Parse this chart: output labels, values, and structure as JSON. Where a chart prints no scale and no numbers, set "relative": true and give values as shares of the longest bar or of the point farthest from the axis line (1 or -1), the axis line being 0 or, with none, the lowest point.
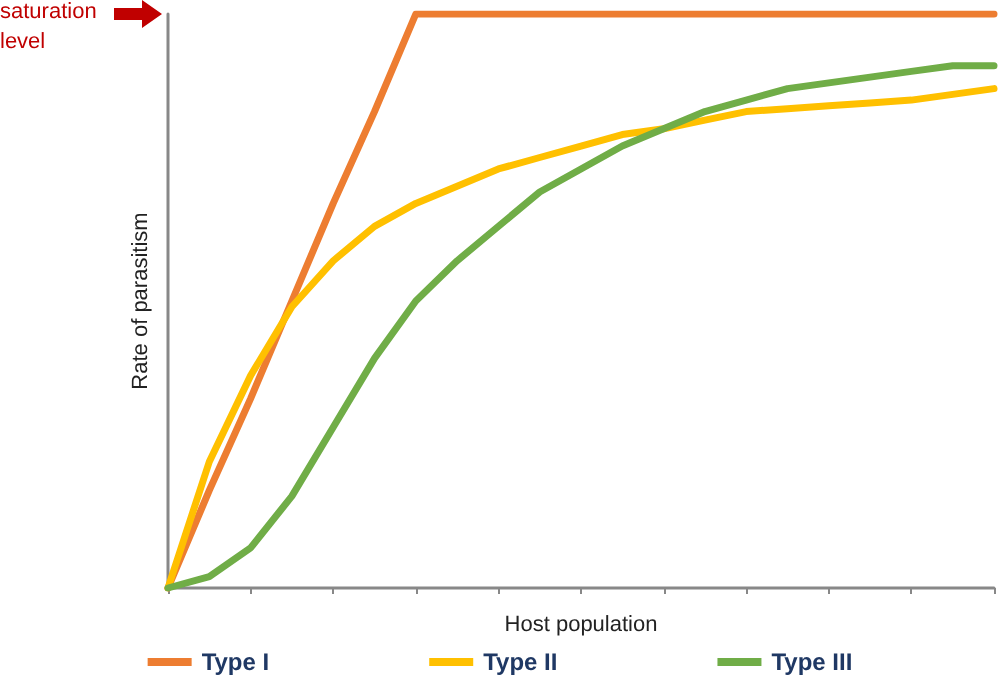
{
  "chart_data": {
    "type": "line",
    "relative": true,
    "xlabel": "Host population",
    "ylabel": "Rate of parasitism",
    "categories": [
      null,
      null,
      null,
      null,
      null,
      null,
      null,
      null,
      null,
      null,
      null,
      null,
      null,
      null,
      null,
      null,
      null,
      null,
      null,
      null,
      null
    ],
    "series": [
      {
        "name": "Type I",
        "color": "#ed7d31",
        "values": [
          0,
          0.17,
          0.33,
          0.5,
          0.67,
          0.83,
          1,
          1,
          1,
          1,
          1,
          1,
          1,
          1,
          1,
          1,
          1,
          1,
          1,
          1,
          1
        ]
      },
      {
        "name": "Type II",
        "color": "#ffc000",
        "values": [
          0,
          0.22,
          0.37,
          0.49,
          0.57,
          0.63,
          0.67,
          0.7,
          0.73,
          0.75,
          0.77,
          0.79,
          0.8,
          0.815,
          0.83,
          0.835,
          0.84,
          0.845,
          0.85,
          0.86,
          0.87
        ]
      },
      {
        "name": "Type III",
        "color": "#70ad47",
        "values": [
          0,
          0.02,
          0.07,
          0.16,
          0.28,
          0.4,
          0.5,
          0.57,
          0.63,
          0.69,
          0.73,
          0.77,
          0.8,
          0.83,
          0.85,
          0.87,
          0.88,
          0.89,
          0.9,
          0.91,
          0.91
        ]
      }
    ],
    "annotations": [
      "saturation level"
    ],
    "legend": "bottom",
    "marker": "none",
    "line_style": "solid",
    "grid": false
  }
}
